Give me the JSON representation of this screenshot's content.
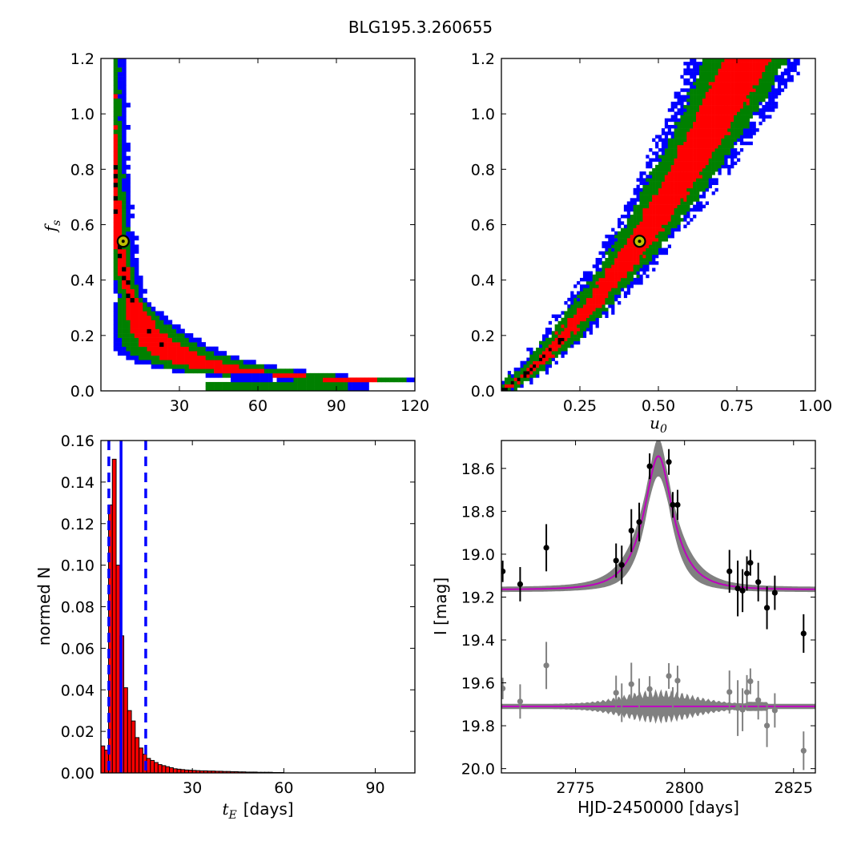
{
  "title": "BLG195.3.260655",
  "colors": {
    "sigma1": "#ff0000",
    "sigma2": "#008000",
    "sigma3": "#0000ff",
    "best": "#000000",
    "marker_face": "#bfbf00",
    "model": "#bf00bf",
    "band": "#808080",
    "resid": "#808080"
  },
  "chart_data": [
    {
      "type": "heatmap",
      "panel": "top-left",
      "xlabel": "",
      "ylabel": "f_s",
      "ylabel_main": "f",
      "ylabel_sub": "s",
      "xlim": [
        0,
        120
      ],
      "ylim": [
        0,
        1.2
      ],
      "xticks": [
        30,
        60,
        90,
        120
      ],
      "xtick_labels": [
        "30",
        "60",
        "90",
        "120"
      ],
      "yticks": [
        0,
        0.2,
        0.4,
        0.6,
        0.8,
        1.0,
        1.2
      ],
      "ytick_labels": [
        "0.0",
        "0.2",
        "0.4",
        "0.6",
        "0.8",
        "1.0",
        "1.2"
      ],
      "best_fit": {
        "x": 8.5,
        "y": 0.54
      },
      "ridge": {
        "form": "f_s ≈ 3.8 / t_E",
        "t_min": 4.5,
        "t_max_red": 40,
        "t_max_green": 95,
        "t_max_blue": 103
      },
      "contour_levels": [
        "1-sigma (red)",
        "2-sigma (green)",
        "3-sigma (blue)",
        "best samples (black)"
      ]
    },
    {
      "type": "heatmap",
      "panel": "top-right",
      "xlabel": "u_0",
      "xlabel_main": "u",
      "xlabel_sub": "0",
      "ylabel": "",
      "xlim": [
        0,
        1.0
      ],
      "ylim": [
        0,
        1.2
      ],
      "xticks": [
        0.25,
        0.5,
        0.75,
        1.0
      ],
      "xtick_labels": [
        "0.25",
        "0.50",
        "0.75",
        "1.00"
      ],
      "yticks": [
        0,
        0.2,
        0.4,
        0.6,
        0.8,
        1.0,
        1.2
      ],
      "ytick_labels": [
        "0.0",
        "0.2",
        "0.4",
        "0.6",
        "0.8",
        "1.0",
        "1.2"
      ],
      "best_fit": {
        "x": 0.44,
        "y": 0.54
      },
      "ridge": {
        "points": [
          [
            0,
            0
          ],
          [
            0.1,
            0.08
          ],
          [
            0.2,
            0.2
          ],
          [
            0.3,
            0.33
          ],
          [
            0.4,
            0.47
          ],
          [
            0.5,
            0.64
          ],
          [
            0.6,
            0.82
          ],
          [
            0.7,
            1.02
          ],
          [
            0.78,
            1.2
          ]
        ]
      }
    },
    {
      "type": "bar",
      "panel": "bottom-left",
      "xlabel": "t_E [days]",
      "xlabel_main": "t",
      "xlabel_sub": "E",
      "xlabel_units": "[days]",
      "ylabel": "normed N",
      "xlim": [
        0,
        103
      ],
      "ylim": [
        0,
        0.16
      ],
      "xticks": [
        30,
        60,
        90
      ],
      "xtick_labels": [
        "30",
        "60",
        "90"
      ],
      "yticks": [
        0,
        0.02,
        0.04,
        0.06,
        0.08,
        0.1,
        0.12,
        0.14,
        0.16
      ],
      "ytick_labels": [
        "0.00",
        "0.02",
        "0.04",
        "0.06",
        "0.08",
        "0.10",
        "0.12",
        "0.14",
        "0.16"
      ],
      "bin_width": 1.25,
      "values": [
        0.013,
        0.011,
        0.129,
        0.151,
        0.1,
        0.066,
        0.041,
        0.03,
        0.025,
        0.017,
        0.012,
        0.009,
        0.007,
        0.006,
        0.005,
        0.004,
        0.0035,
        0.003,
        0.0025,
        0.002,
        0.0018,
        0.0016,
        0.0014,
        0.0013,
        0.0012,
        0.0011,
        0.001,
        0.001,
        0.0009,
        0.0009,
        0.0008,
        0.0008,
        0.0007,
        0.0007,
        0.0006,
        0.0006,
        0.0005,
        0.0005,
        0.0004,
        0.0004,
        0.0004,
        0.0003,
        0.0003,
        0.0003,
        0.0003,
        0.0002,
        0.0002,
        0.0002
      ],
      "vlines_dashed": [
        2.6,
        14.7
      ],
      "vline_solid": 6.6
    },
    {
      "type": "scatter",
      "panel": "bottom-right",
      "xlabel": "HJD-2450000 [days]",
      "ylabel": "I [mag]",
      "xlim": [
        2758,
        2830
      ],
      "ylim": [
        20.02,
        18.47
      ],
      "xticks": [
        2775,
        2800,
        2825
      ],
      "xtick_labels": [
        "2775",
        "2800",
        "2825"
      ],
      "yticks": [
        18.6,
        18.8,
        19.0,
        19.2,
        19.4,
        19.6,
        19.8,
        20.0
      ],
      "ytick_labels": [
        "18.6",
        "18.8",
        "19.0",
        "19.2",
        "19.4",
        "19.6",
        "19.8",
        "20.0"
      ],
      "model": {
        "t0": 2794,
        "tE": 6.6,
        "u0": 0.44,
        "fs": 0.54,
        "I_base": 19.165
      },
      "residual_offset": 19.71,
      "series": [
        {
          "points": [
            {
              "x": 2758.3,
              "y": 19.08,
              "err": 0.05
            },
            {
              "x": 2762.3,
              "y": 19.14,
              "err": 0.08
            },
            {
              "x": 2768.3,
              "y": 18.97,
              "err": 0.11
            },
            {
              "x": 2784.3,
              "y": 19.03,
              "err": 0.08
            },
            {
              "x": 2785.6,
              "y": 19.05,
              "err": 0.09
            },
            {
              "x": 2787.8,
              "y": 18.89,
              "err": 0.1
            },
            {
              "x": 2789.6,
              "y": 18.85,
              "err": 0.09
            },
            {
              "x": 2792.0,
              "y": 18.59,
              "err": 0.06
            },
            {
              "x": 2796.4,
              "y": 18.57,
              "err": 0.06
            },
            {
              "x": 2797.3,
              "y": 18.77,
              "err": 0.06
            },
            {
              "x": 2798.4,
              "y": 18.77,
              "err": 0.07
            },
            {
              "x": 2810.3,
              "y": 19.08,
              "err": 0.1
            },
            {
              "x": 2812.2,
              "y": 19.16,
              "err": 0.13
            },
            {
              "x": 2813.3,
              "y": 19.17,
              "err": 0.1
            },
            {
              "x": 2814.3,
              "y": 19.09,
              "err": 0.08
            },
            {
              "x": 2815.1,
              "y": 19.04,
              "err": 0.06
            },
            {
              "x": 2816.9,
              "y": 19.13,
              "err": 0.09
            },
            {
              "x": 2818.9,
              "y": 19.25,
              "err": 0.1
            },
            {
              "x": 2820.7,
              "y": 19.18,
              "err": 0.08
            },
            {
              "x": 2827.3,
              "y": 19.37,
              "err": 0.09
            }
          ]
        }
      ]
    }
  ]
}
